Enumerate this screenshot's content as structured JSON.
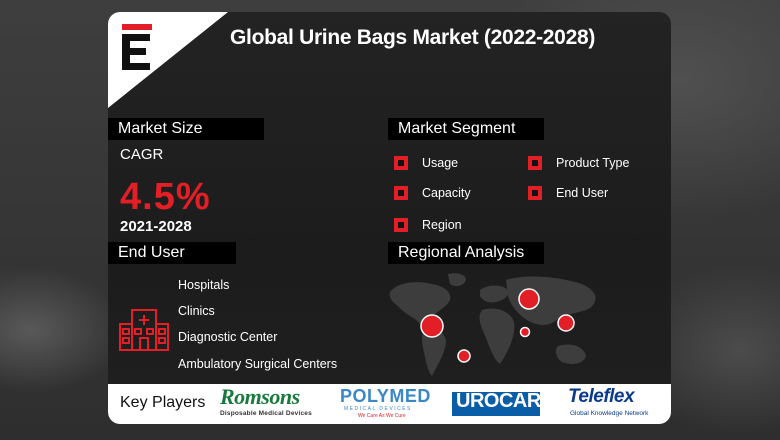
{
  "title": "Global Urine Bags Market (2022-2028)",
  "brand_logo_letter": "E",
  "market_size": {
    "header": "Market Size",
    "cagr_label": "CAGR",
    "cagr_value": "4.5%",
    "period": "2021-2028"
  },
  "market_segment": {
    "header": "Market Segment",
    "items": [
      "Usage",
      "Product Type",
      "Capacity",
      "End User",
      "Region"
    ]
  },
  "end_user": {
    "header": "End User",
    "items": [
      "Hospitals",
      "Clinics",
      "Diagnostic Center",
      "Ambulatory Surgical Centers"
    ]
  },
  "regional_analysis": {
    "header": "Regional Analysis"
  },
  "key_players": {
    "label": "Key Players",
    "logos": [
      {
        "name": "Romsons",
        "tagline": "Disposable Medical Devices"
      },
      {
        "name": "POLYMED",
        "tagline": "MEDICAL DEVICES",
        "sub": "We Care As We Cure"
      },
      {
        "name": "UROCARE"
      },
      {
        "name": "Teleflex",
        "tagline": "Global Knowledge Network"
      }
    ]
  },
  "colors": {
    "accent": "#e21f26",
    "card": "#1f1f1f",
    "header_bg": "#000000"
  }
}
